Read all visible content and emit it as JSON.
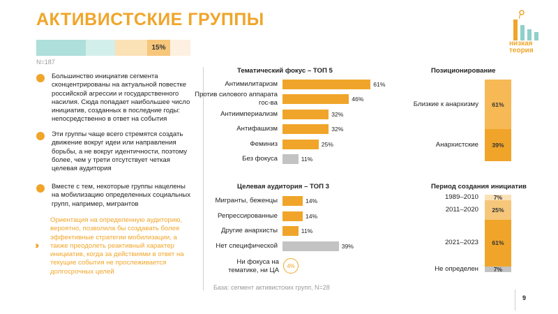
{
  "title": "АКТИВИСТСКИЕ ГРУППЫ",
  "segment_bar": {
    "segments": [
      {
        "color": "#aedfdb",
        "label": ""
      },
      {
        "color": "#d3efec",
        "label": ""
      },
      {
        "color": "#fbe1b6",
        "label": ""
      },
      {
        "color": "#f6c67a",
        "label": "15%"
      },
      {
        "color": "#fdf0e1",
        "label": ""
      }
    ],
    "n_label": "N=187"
  },
  "logo": {
    "line1": "низкая",
    "line2": "теория"
  },
  "bullets": [
    {
      "text": "Большинство инициатив сегмента сконцентрированы на актуальной повестке российской агрессии и государственного насилия. Сюда попадает наибольшее число инициатив, созданных в последние годы: непосредственно в ответ на события"
    },
    {
      "text": "Эти группы чаще всего стремятся создать движение вокруг идеи или направления борьбы, а не вокруг идентичности, поэтому более, чем у трети отсутствует четкая целевая аудитория"
    },
    {
      "text": "Вместе с тем, некоторые группы нацелены на мобилизацию определенных социальных групп, например, мигрантов"
    }
  ],
  "orange_note": "Ориентация на определенную аудиторию, вероятно, позволила бы создавать более эффективные стратегии мобилизации, а также преодолеть реактивный характер инициатив, когда за действиями в ответ на текущие события не прослеживается долгосрочных целей",
  "thematic": {
    "title": "Тематический фокус – ТОП 5",
    "items": [
      {
        "label": "Антимилитаризм",
        "value": 61,
        "display": "61%",
        "color": "#f0a52a"
      },
      {
        "label": "Против силового аппарата гос-ва",
        "value": 46,
        "display": "46%",
        "color": "#f0a52a"
      },
      {
        "label": "Антиимпериализм",
        "value": 32,
        "display": "32%",
        "color": "#f0a52a"
      },
      {
        "label": "Антифашизм",
        "value": 32,
        "display": "32%",
        "color": "#f0a52a"
      },
      {
        "label": "Феминиз",
        "value": 25,
        "display": "25%",
        "color": "#f0a52a"
      },
      {
        "label": "Без фокуса",
        "value": 11,
        "display": "11%",
        "color": "#c3c3c3"
      }
    ]
  },
  "audience": {
    "title": "Целевая аудитория – ТОП 3",
    "items": [
      {
        "label": "Мигранты, беженцы",
        "value": 14,
        "display": "14%",
        "color": "#f0a52a"
      },
      {
        "label": "Репрессированные",
        "value": 14,
        "display": "14%",
        "color": "#f0a52a"
      },
      {
        "label": "Другие анархисты",
        "value": 11,
        "display": "11%",
        "color": "#f0a52a"
      },
      {
        "label": "Нет специфической",
        "value": 39,
        "display": "39%",
        "color": "#c3c3c3"
      }
    ],
    "no_focus_label": "Ни фокуса на тематике, ни ЦА",
    "no_focus_value": "4%"
  },
  "positioning": {
    "title": "Позиционирование",
    "items": [
      {
        "label": "Близкие к анархизму",
        "value": 61,
        "display": "61%",
        "color": "#f6b955"
      },
      {
        "label": "Анархистские",
        "value": 39,
        "display": "39%",
        "color": "#f0a52a"
      }
    ]
  },
  "period": {
    "title": "Период создания инициатив",
    "items": [
      {
        "label": "1989–2010",
        "value": 7,
        "display": "7%",
        "color": "#fbe1b6"
      },
      {
        "label": "2011–2020",
        "value": 25,
        "display": "25%",
        "color": "#f6c67a"
      },
      {
        "label": "2021–2023",
        "value": 61,
        "display": "61%",
        "color": "#f0a52a"
      },
      {
        "label": "Не определен",
        "value": 7,
        "display": "7%",
        "color": "#c3c3c3"
      }
    ]
  },
  "base_note": "База: сегмент активистских групп, N=28",
  "page_number": "9"
}
